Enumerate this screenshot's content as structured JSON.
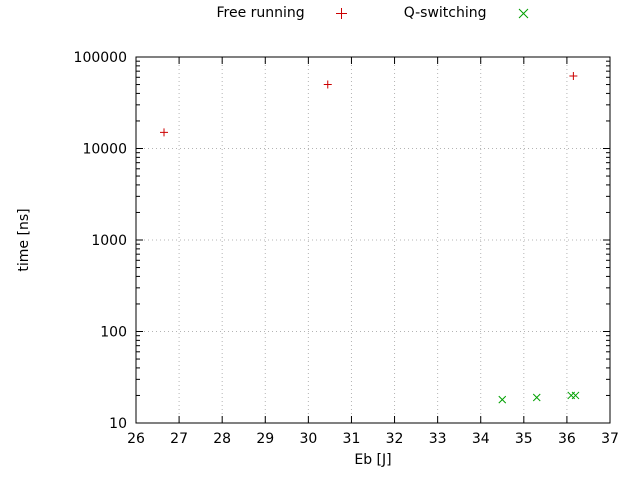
{
  "colors": {
    "background": "#ffffff",
    "border": "#000000",
    "grid": "#b4b4b4",
    "free_running": "#cc0000",
    "q_switching": "#00a000"
  },
  "chart_data": {
    "type": "scatter",
    "title": "",
    "xlabel": "Eb [J]",
    "ylabel": "time [ns]",
    "xlim": [
      26,
      37
    ],
    "ylim": [
      10,
      100000
    ],
    "yscale": "log",
    "grid": true,
    "legend_position": "top-center",
    "xticks": [
      26,
      27,
      28,
      29,
      30,
      31,
      32,
      33,
      34,
      35,
      36,
      37
    ],
    "yticks": [
      10,
      100,
      1000,
      10000,
      100000
    ],
    "ytick_labels": [
      "10",
      "100",
      "1000",
      "10000",
      "100000"
    ],
    "series": [
      {
        "name": "Free running",
        "marker": "plus",
        "color": "#cc0000",
        "points": [
          [
            26.65,
            15000
          ],
          [
            30.45,
            50000
          ],
          [
            36.15,
            62000
          ]
        ]
      },
      {
        "name": "Q-switching",
        "marker": "cross",
        "color": "#00a000",
        "points": [
          [
            34.5,
            18
          ],
          [
            35.3,
            19
          ],
          [
            36.1,
            20
          ],
          [
            36.2,
            20
          ]
        ]
      }
    ]
  }
}
